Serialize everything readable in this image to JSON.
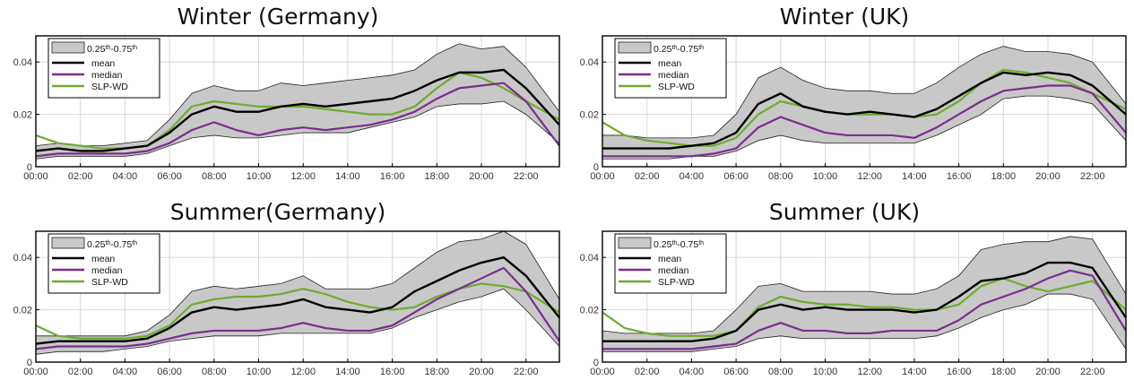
{
  "colors": {
    "band": "#c8c8c8",
    "band_edge": "#222222",
    "mean": "#000000",
    "median": "#7b2d8e",
    "slp_wd": "#6bae2e",
    "grid": "#d8d8d8"
  },
  "legend": {
    "band_prefix": "0.25",
    "band_sup1": "th",
    "band_mid": "-0.75",
    "band_sup2": "th",
    "mean": "mean",
    "median": "median",
    "slp_wd": "SLP-WD"
  },
  "chart_data": [
    {
      "type": "area",
      "title": "Winter (Germany)",
      "xlabel": "",
      "ylabel": "",
      "xlim": [
        0,
        23.5
      ],
      "ylim": [
        0,
        0.05
      ],
      "x_ticks": [
        "00:00",
        "02:00",
        "04:00",
        "06:00",
        "08:00",
        "10:00",
        "12:00",
        "14:00",
        "16:00",
        "18:00",
        "20:00",
        "22:00"
      ],
      "y_ticks": [
        "0",
        "0.02",
        "0.04"
      ],
      "legend_position": "top-left",
      "grid": true,
      "x_hours": [
        0,
        1,
        2,
        3,
        4,
        5,
        6,
        7,
        8,
        9,
        10,
        11,
        12,
        13,
        14,
        15,
        16,
        17,
        18,
        19,
        20,
        21,
        22,
        23.5
      ],
      "series": [
        {
          "name": "0.25th-0.75th lower",
          "values": [
            0.003,
            0.004,
            0.004,
            0.004,
            0.004,
            0.005,
            0.008,
            0.011,
            0.012,
            0.011,
            0.011,
            0.012,
            0.013,
            0.013,
            0.013,
            0.015,
            0.017,
            0.019,
            0.023,
            0.024,
            0.024,
            0.025,
            0.02,
            0.009
          ]
        },
        {
          "name": "0.25th-0.75th upper",
          "values": [
            0.008,
            0.009,
            0.008,
            0.008,
            0.009,
            0.01,
            0.018,
            0.028,
            0.031,
            0.029,
            0.029,
            0.032,
            0.031,
            0.032,
            0.033,
            0.034,
            0.035,
            0.037,
            0.043,
            0.047,
            0.045,
            0.046,
            0.038,
            0.021
          ]
        },
        {
          "name": "mean",
          "values": [
            0.006,
            0.007,
            0.006,
            0.006,
            0.007,
            0.008,
            0.013,
            0.02,
            0.023,
            0.021,
            0.021,
            0.023,
            0.024,
            0.023,
            0.024,
            0.025,
            0.026,
            0.029,
            0.033,
            0.036,
            0.036,
            0.037,
            0.03,
            0.016
          ]
        },
        {
          "name": "median",
          "values": [
            0.004,
            0.005,
            0.005,
            0.005,
            0.005,
            0.006,
            0.009,
            0.014,
            0.017,
            0.014,
            0.012,
            0.014,
            0.015,
            0.014,
            0.015,
            0.016,
            0.018,
            0.021,
            0.026,
            0.03,
            0.031,
            0.032,
            0.025,
            0.008
          ]
        },
        {
          "name": "SLP-WD",
          "values": [
            0.012,
            0.009,
            0.008,
            0.007,
            0.007,
            0.008,
            0.014,
            0.023,
            0.025,
            0.024,
            0.023,
            0.023,
            0.023,
            0.022,
            0.021,
            0.02,
            0.02,
            0.023,
            0.03,
            0.036,
            0.034,
            0.03,
            0.025,
            0.018
          ]
        }
      ]
    },
    {
      "type": "area",
      "title": "Winter (UK)",
      "xlabel": "",
      "ylabel": "",
      "xlim": [
        0,
        23.5
      ],
      "ylim": [
        0,
        0.05
      ],
      "x_ticks": [
        "00:00",
        "02:00",
        "04:00",
        "06:00",
        "08:00",
        "10:00",
        "12:00",
        "14:00",
        "16:00",
        "18:00",
        "20:00",
        "22:00"
      ],
      "y_ticks": [
        "0",
        "0.02",
        "0.04"
      ],
      "legend_position": "top-left",
      "grid": true,
      "x_hours": [
        0,
        1,
        2,
        3,
        4,
        5,
        6,
        7,
        8,
        9,
        10,
        11,
        12,
        13,
        14,
        15,
        16,
        17,
        18,
        19,
        20,
        21,
        22,
        23.5
      ],
      "series": [
        {
          "name": "0.25th-0.75th lower",
          "values": [
            0.003,
            0.003,
            0.003,
            0.003,
            0.004,
            0.004,
            0.006,
            0.01,
            0.012,
            0.01,
            0.009,
            0.009,
            0.009,
            0.009,
            0.009,
            0.012,
            0.016,
            0.02,
            0.026,
            0.027,
            0.027,
            0.026,
            0.024,
            0.01
          ]
        },
        {
          "name": "0.25th-0.75th upper",
          "values": [
            0.012,
            0.012,
            0.011,
            0.011,
            0.011,
            0.012,
            0.02,
            0.034,
            0.038,
            0.033,
            0.03,
            0.029,
            0.029,
            0.028,
            0.028,
            0.032,
            0.038,
            0.043,
            0.046,
            0.044,
            0.044,
            0.043,
            0.04,
            0.024
          ]
        },
        {
          "name": "mean",
          "values": [
            0.007,
            0.007,
            0.007,
            0.007,
            0.008,
            0.009,
            0.013,
            0.024,
            0.028,
            0.023,
            0.021,
            0.02,
            0.021,
            0.02,
            0.019,
            0.022,
            0.027,
            0.032,
            0.036,
            0.035,
            0.036,
            0.035,
            0.031,
            0.02
          ]
        },
        {
          "name": "median",
          "values": [
            0.004,
            0.004,
            0.004,
            0.004,
            0.004,
            0.005,
            0.007,
            0.015,
            0.019,
            0.016,
            0.013,
            0.012,
            0.012,
            0.012,
            0.011,
            0.015,
            0.02,
            0.025,
            0.029,
            0.03,
            0.031,
            0.031,
            0.028,
            0.013
          ]
        },
        {
          "name": "SLP-WD",
          "values": [
            0.017,
            0.012,
            0.01,
            0.009,
            0.008,
            0.008,
            0.011,
            0.02,
            0.025,
            0.023,
            0.021,
            0.02,
            0.02,
            0.02,
            0.019,
            0.02,
            0.025,
            0.032,
            0.037,
            0.036,
            0.034,
            0.032,
            0.028,
            0.022
          ]
        }
      ]
    },
    {
      "type": "area",
      "title": "Summer(Germany)",
      "xlabel": "",
      "ylabel": "",
      "xlim": [
        0,
        23.5
      ],
      "ylim": [
        0,
        0.05
      ],
      "x_ticks": [
        "00:00",
        "02:00",
        "04:00",
        "06:00",
        "08:00",
        "10:00",
        "12:00",
        "14:00",
        "16:00",
        "18:00",
        "20:00",
        "22:00"
      ],
      "y_ticks": [
        "0",
        "0.02",
        "0.04"
      ],
      "legend_position": "top-left",
      "grid": true,
      "x_hours": [
        0,
        1,
        2,
        3,
        4,
        5,
        6,
        7,
        8,
        9,
        10,
        11,
        12,
        13,
        14,
        15,
        16,
        17,
        18,
        19,
        20,
        21,
        22,
        23.5
      ],
      "series": [
        {
          "name": "0.25th-0.75th lower",
          "values": [
            0.003,
            0.004,
            0.004,
            0.004,
            0.005,
            0.006,
            0.008,
            0.009,
            0.01,
            0.01,
            0.01,
            0.011,
            0.011,
            0.011,
            0.011,
            0.011,
            0.013,
            0.017,
            0.02,
            0.023,
            0.025,
            0.028,
            0.02,
            0.006
          ]
        },
        {
          "name": "0.25th-0.75th upper",
          "values": [
            0.01,
            0.01,
            0.01,
            0.01,
            0.01,
            0.012,
            0.018,
            0.027,
            0.029,
            0.028,
            0.029,
            0.03,
            0.033,
            0.028,
            0.028,
            0.028,
            0.03,
            0.036,
            0.042,
            0.046,
            0.047,
            0.05,
            0.045,
            0.024
          ]
        },
        {
          "name": "mean",
          "values": [
            0.007,
            0.008,
            0.008,
            0.008,
            0.008,
            0.009,
            0.013,
            0.019,
            0.021,
            0.02,
            0.021,
            0.022,
            0.024,
            0.021,
            0.02,
            0.019,
            0.021,
            0.027,
            0.031,
            0.035,
            0.038,
            0.04,
            0.033,
            0.017
          ]
        },
        {
          "name": "median",
          "values": [
            0.005,
            0.006,
            0.006,
            0.006,
            0.006,
            0.007,
            0.009,
            0.011,
            0.012,
            0.012,
            0.012,
            0.013,
            0.015,
            0.013,
            0.012,
            0.012,
            0.014,
            0.019,
            0.024,
            0.028,
            0.032,
            0.036,
            0.027,
            0.008
          ]
        },
        {
          "name": "SLP-WD",
          "values": [
            0.014,
            0.01,
            0.009,
            0.009,
            0.009,
            0.01,
            0.014,
            0.022,
            0.024,
            0.025,
            0.025,
            0.026,
            0.028,
            0.026,
            0.023,
            0.021,
            0.02,
            0.021,
            0.025,
            0.028,
            0.03,
            0.029,
            0.027,
            0.019
          ]
        }
      ]
    },
    {
      "type": "area",
      "title": "Summer (UK)",
      "xlabel": "",
      "ylabel": "",
      "xlim": [
        0,
        23.5
      ],
      "ylim": [
        0,
        0.05
      ],
      "x_ticks": [
        "00:00",
        "02:00",
        "04:00",
        "06:00",
        "08:00",
        "10:00",
        "12:00",
        "14:00",
        "16:00",
        "18:00",
        "20:00",
        "22:00"
      ],
      "y_ticks": [
        "0",
        "0.02",
        "0.04"
      ],
      "legend_position": "top-left",
      "grid": true,
      "x_hours": [
        0,
        1,
        2,
        3,
        4,
        5,
        6,
        7,
        8,
        9,
        10,
        11,
        12,
        13,
        14,
        15,
        16,
        17,
        18,
        19,
        20,
        21,
        22,
        23.5
      ],
      "series": [
        {
          "name": "0.25th-0.75th lower",
          "values": [
            0.004,
            0.004,
            0.004,
            0.004,
            0.004,
            0.005,
            0.006,
            0.009,
            0.01,
            0.009,
            0.009,
            0.009,
            0.009,
            0.009,
            0.009,
            0.01,
            0.013,
            0.017,
            0.02,
            0.022,
            0.026,
            0.026,
            0.024,
            0.005
          ]
        },
        {
          "name": "0.25th-0.75th upper",
          "values": [
            0.012,
            0.011,
            0.011,
            0.011,
            0.011,
            0.012,
            0.02,
            0.029,
            0.03,
            0.027,
            0.027,
            0.027,
            0.027,
            0.026,
            0.026,
            0.028,
            0.033,
            0.043,
            0.045,
            0.046,
            0.046,
            0.048,
            0.047,
            0.026
          ]
        },
        {
          "name": "mean",
          "values": [
            0.008,
            0.008,
            0.008,
            0.008,
            0.008,
            0.009,
            0.012,
            0.02,
            0.022,
            0.02,
            0.021,
            0.02,
            0.02,
            0.02,
            0.019,
            0.02,
            0.025,
            0.031,
            0.032,
            0.034,
            0.038,
            0.038,
            0.036,
            0.017
          ]
        },
        {
          "name": "median",
          "values": [
            0.005,
            0.005,
            0.005,
            0.005,
            0.005,
            0.006,
            0.007,
            0.012,
            0.015,
            0.012,
            0.012,
            0.011,
            0.011,
            0.012,
            0.012,
            0.012,
            0.016,
            0.022,
            0.025,
            0.028,
            0.032,
            0.035,
            0.033,
            0.012
          ]
        },
        {
          "name": "SLP-WD",
          "values": [
            0.019,
            0.013,
            0.011,
            0.01,
            0.01,
            0.01,
            0.012,
            0.021,
            0.025,
            0.023,
            0.022,
            0.022,
            0.021,
            0.021,
            0.02,
            0.02,
            0.022,
            0.029,
            0.032,
            0.029,
            0.027,
            0.029,
            0.031,
            0.02
          ]
        }
      ]
    }
  ]
}
